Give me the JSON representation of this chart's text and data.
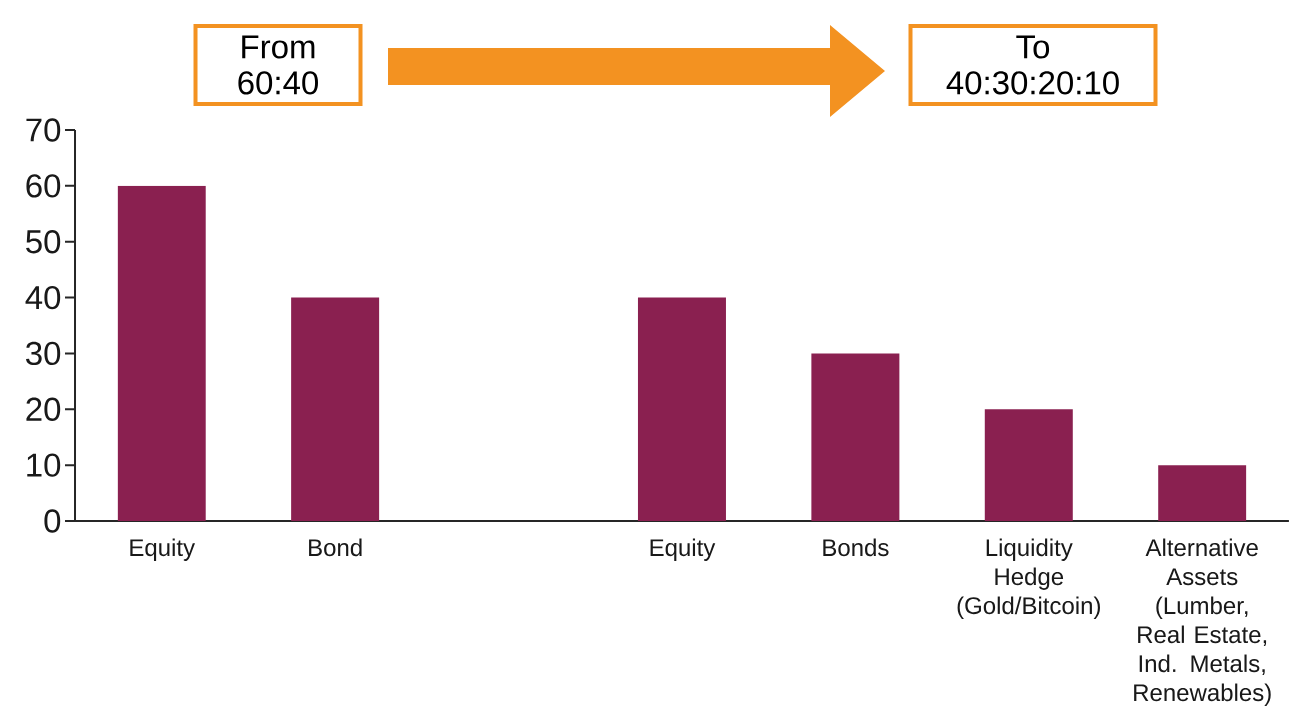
{
  "chart_data": {
    "type": "bar",
    "categories": [
      "Equity",
      "Bond",
      null,
      "Equity",
      "Bonds",
      "Liquidity Hedge (Gold/Bitcoin)",
      "Alternative Assets (Lumber, Real Estate, Ind. Metals, Renewables)"
    ],
    "values": [
      60,
      40,
      null,
      40,
      30,
      20,
      10
    ],
    "color": "#8a2050",
    "ylim": [
      0,
      70
    ],
    "yticks": [
      0,
      10,
      20,
      30,
      40,
      50,
      60,
      70
    ],
    "annotations": [
      "From 60:40",
      "To 40:30:20:10"
    ]
  }
}
